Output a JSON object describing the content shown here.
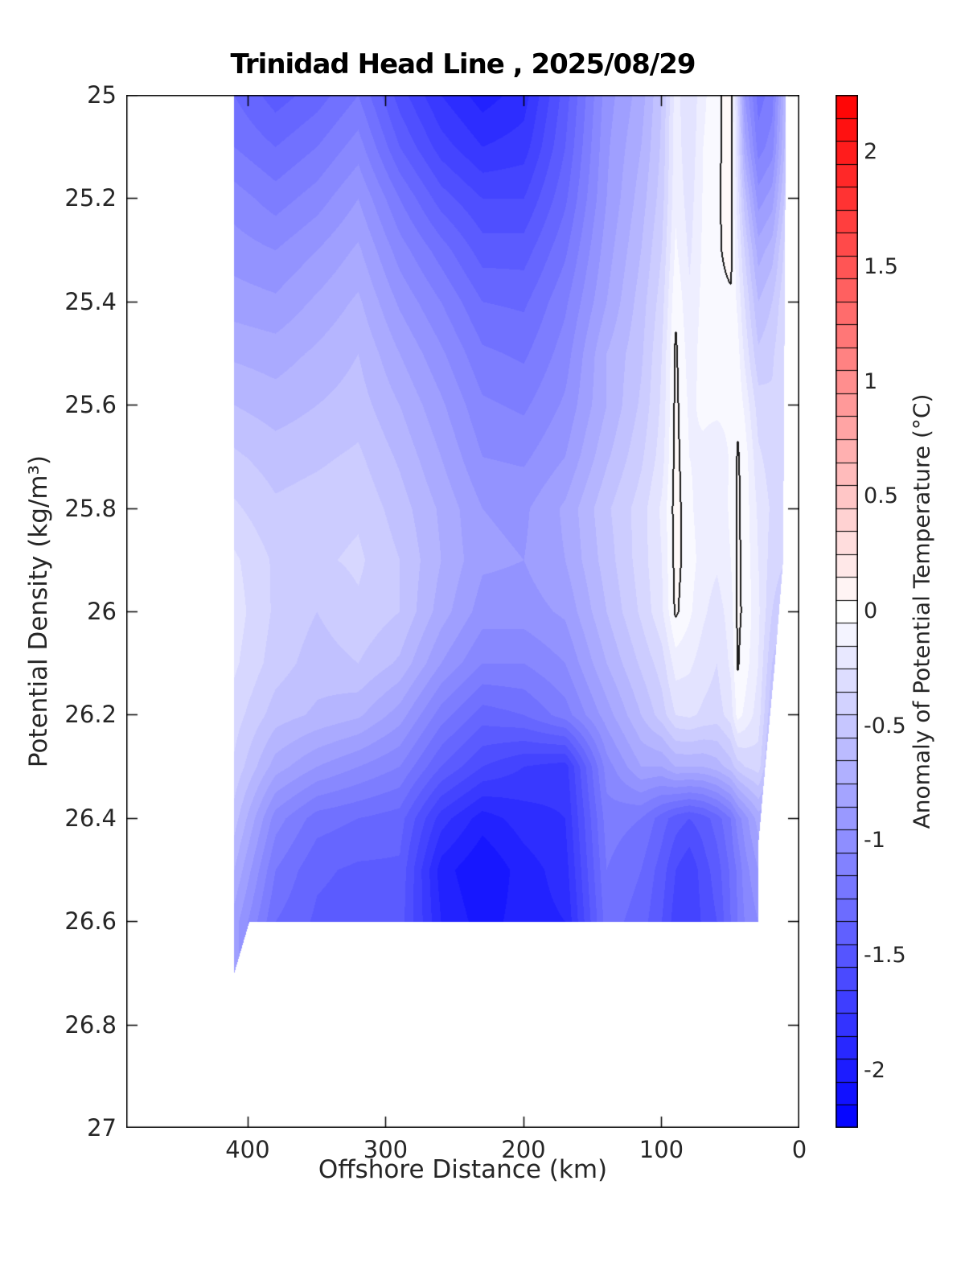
{
  "title": "Trinidad Head Line , 2025/08/29",
  "axes": {
    "xlabel": "Offshore Distance (km)",
    "ylabel": "Potential Density (kg/m³)",
    "x_ticks": [
      {
        "label": "400",
        "km": 400
      },
      {
        "label": "300",
        "km": 300
      },
      {
        "label": "200",
        "km": 200
      },
      {
        "label": "100",
        "km": 100
      },
      {
        "label": "0",
        "km": 0
      }
    ],
    "y_ticks": [
      {
        "label": "25",
        "sigma": 25.0
      },
      {
        "label": "25.2",
        "sigma": 25.2
      },
      {
        "label": "25.4",
        "sigma": 25.4
      },
      {
        "label": "25.6",
        "sigma": 25.6
      },
      {
        "label": "25.8",
        "sigma": 25.8
      },
      {
        "label": "26",
        "sigma": 26.0
      },
      {
        "label": "26.2",
        "sigma": 26.2
      },
      {
        "label": "26.4",
        "sigma": 26.4
      },
      {
        "label": "26.6",
        "sigma": 26.6
      },
      {
        "label": "26.8",
        "sigma": 26.8
      },
      {
        "label": "27",
        "sigma": 27.0
      }
    ]
  },
  "colorbar": {
    "label": "Anomaly of Potential Temperature (°C)",
    "min": -2.25,
    "max": 2.25,
    "segment_step": 0.1,
    "ticks": [
      {
        "label": "2",
        "value": 2
      },
      {
        "label": "1.5",
        "value": 1.5
      },
      {
        "label": "1",
        "value": 1
      },
      {
        "label": "0.5",
        "value": 0.5
      },
      {
        "label": "0",
        "value": 0
      },
      {
        "label": "-0.5",
        "value": -0.5
      },
      {
        "label": "-1",
        "value": -1
      },
      {
        "label": "-1.5",
        "value": -1.5
      },
      {
        "label": "-2",
        "value": -2
      }
    ]
  },
  "chart_data": {
    "type": "heatmap",
    "subtype": "filled-contour-section",
    "title": "Trinidad Head Line , 2025/08/29",
    "xlabel": "Offshore Distance (km)",
    "ylabel": "Potential Density (kg/m³)",
    "zlabel": "Anomaly of Potential Temperature (°C)",
    "x_reversed": true,
    "x_range_km": [
      0,
      488
    ],
    "y_range_sigma": [
      25,
      27
    ],
    "levels_step": 0.1,
    "color_axis": [
      -2.25,
      2.25
    ],
    "colormap": "blue-white-red",
    "deep_blue": "#0000ff",
    "deep_red": "#ff0000",
    "white": "#ffffff",
    "zero_contour_color": "#1a1a1a",
    "stations_km": [
      410,
      380,
      350,
      320,
      290,
      260,
      230,
      200,
      170,
      140,
      115,
      100,
      90,
      80,
      70,
      60,
      50,
      45,
      40,
      30,
      20,
      10
    ],
    "sigma_rows": [
      25.0,
      25.1,
      25.2,
      25.3,
      25.4,
      25.5,
      25.6,
      25.7,
      25.8,
      25.9,
      26.0,
      26.1,
      26.2,
      26.3,
      26.4,
      26.5,
      26.6
    ],
    "anomaly_values": [
      [
        -1.3,
        -1.2,
        -1.05,
        -0.95,
        -0.85,
        -0.72,
        -0.6,
        -0.48,
        -0.38,
        -0.28,
        -0.25,
        -0.28,
        -0.35,
        -0.42,
        -0.55,
        -0.7,
        -0.85
      ],
      [
        -1.45,
        -1.3,
        -1.15,
        -1.0,
        -0.88,
        -0.75,
        -0.65,
        -0.55,
        -0.48,
        -0.42,
        -0.42,
        -0.45,
        -0.55,
        -0.75,
        -1.05,
        -1.2,
        -1.3
      ],
      [
        -1.35,
        -1.2,
        -1.05,
        -0.9,
        -0.78,
        -0.68,
        -0.6,
        -0.52,
        -0.45,
        -0.42,
        -0.5,
        -0.55,
        -0.62,
        -0.9,
        -1.25,
        -1.38,
        -1.42
      ],
      [
        -1.2,
        -1.05,
        -0.9,
        -0.78,
        -0.68,
        -0.6,
        -0.55,
        -0.48,
        -0.42,
        -0.38,
        -0.42,
        -0.5,
        -0.68,
        -1.0,
        -1.3,
        -1.42,
        -1.45
      ],
      [
        -1.55,
        -1.4,
        -1.2,
        -1.05,
        -0.92,
        -0.8,
        -0.7,
        -0.62,
        -0.55,
        -0.5,
        -0.5,
        -0.62,
        -0.85,
        -1.1,
        -1.35,
        -1.42,
        -1.45
      ],
      [
        -1.8,
        -1.65,
        -1.45,
        -1.25,
        -1.1,
        -0.98,
        -0.88,
        -0.8,
        -0.72,
        -0.7,
        -0.75,
        -0.9,
        -1.15,
        -1.4,
        -1.75,
        -1.95,
        -1.9
      ],
      [
        -1.95,
        -1.8,
        -1.6,
        -1.45,
        -1.3,
        -1.18,
        -1.08,
        -1.0,
        -0.9,
        -0.88,
        -0.95,
        -1.1,
        -1.35,
        -1.6,
        -1.95,
        -2.1,
        -2.05
      ],
      [
        -1.85,
        -1.75,
        -1.6,
        -1.45,
        -1.32,
        -1.22,
        -1.12,
        -1.02,
        -0.92,
        -0.9,
        -0.95,
        -1.1,
        -1.3,
        -1.7,
        -1.85,
        -1.95,
        -1.95
      ],
      [
        -1.45,
        -1.4,
        -1.32,
        -1.22,
        -1.12,
        -1.05,
        -0.98,
        -0.9,
        -0.78,
        -0.8,
        -0.88,
        -1.0,
        -1.15,
        -1.75,
        -1.8,
        -1.85,
        -1.9
      ],
      [
        -0.95,
        -0.92,
        -0.9,
        -0.85,
        -0.8,
        -0.7,
        -0.7,
        -0.62,
        -0.52,
        -0.55,
        -0.6,
        -0.7,
        -0.85,
        -1.05,
        -1.15,
        -1.2,
        -1.25
      ],
      [
        -0.75,
        -0.7,
        -0.65,
        -0.6,
        -0.55,
        -0.52,
        -0.48,
        -0.42,
        -0.35,
        -0.35,
        -0.38,
        -0.48,
        -0.6,
        -0.8,
        -1.2,
        -1.3,
        -1.35
      ],
      [
        -0.5,
        -0.48,
        -0.45,
        -0.4,
        -0.35,
        -0.3,
        -0.28,
        -0.25,
        -0.18,
        -0.2,
        -0.22,
        -0.35,
        -0.45,
        -0.8,
        -1.35,
        -1.45,
        -1.5
      ],
      [
        -0.15,
        -0.14,
        -0.12,
        -0.08,
        -0.02,
        0.02,
        0.03,
        0.04,
        0.05,
        0.04,
        0.02,
        -0.15,
        -0.3,
        -0.7,
        -1.45,
        -1.6,
        -1.65
      ],
      [
        -0.3,
        -0.28,
        -0.25,
        -0.22,
        -0.18,
        -0.15,
        -0.12,
        -0.1,
        -0.08,
        -0.06,
        -0.08,
        -0.18,
        -0.28,
        -0.7,
        -1.5,
        -1.68,
        -1.7
      ],
      [
        -0.12,
        -0.1,
        -0.09,
        -0.08,
        -0.07,
        -0.06,
        -0.08,
        -0.12,
        -0.15,
        -0.14,
        -0.18,
        -0.25,
        -0.32,
        -0.7,
        -1.45,
        -1.55,
        -1.58
      ],
      [
        -0.04,
        -0.03,
        -0.02,
        -0.02,
        -0.03,
        -0.04,
        -0.08,
        -0.15,
        -0.18,
        -0.18,
        -0.25,
        -0.3,
        -0.35,
        -0.65,
        -1.35,
        -1.45,
        -1.5
      ],
      [
        0.08,
        0.07,
        0.06,
        0.04,
        -0.02,
        -0.06,
        -0.08,
        -0.09,
        -0.08,
        -0.1,
        -0.15,
        -0.18,
        -0.25,
        -0.55,
        -1.2,
        -1.28,
        -1.3
      ],
      [
        -0.35,
        -0.3,
        -0.25,
        -0.18,
        -0.12,
        -0.06,
        -0.02,
        0.01,
        0.02,
        0.02,
        0.02,
        0.01,
        -0.06,
        -0.45,
        -1.05,
        -1.18,
        -1.2
      ],
      [
        -0.9,
        -0.75,
        -0.55,
        -0.4,
        -0.3,
        -0.22,
        -0.12,
        -0.04,
        -0.04,
        -0.03,
        -0.02,
        -0.05,
        -0.12,
        -0.4,
        -0.95,
        -1.05,
        -1.1
      ],
      [
        -1.25,
        -1.15,
        -0.95,
        -0.75,
        -0.6,
        -0.48,
        -0.35,
        -0.28,
        -0.22,
        -0.2,
        -0.18,
        -0.2,
        -0.25,
        -0.35,
        -0.75,
        -0.9,
        -1.0
      ],
      [
        -1.15,
        -1.05,
        -0.85,
        -0.65,
        -0.5,
        -0.42,
        -0.38,
        -0.35,
        -0.32,
        -0.35,
        -0.4,
        -0.5,
        -0.6,
        -0.7,
        -0.8,
        -0.85,
        -0.9
      ],
      [
        -0.6,
        -0.55,
        -0.45,
        -0.35,
        -0.3,
        -0.28,
        -0.3,
        -0.32,
        -0.35,
        -0.4,
        -0.5,
        -0.65,
        -0.7,
        -0.75,
        -0.8,
        -0.85,
        -0.9
      ]
    ],
    "data_extent": {
      "km_max": 410,
      "sigma_top": 25.0,
      "sigma_bottom_main": 26.6,
      "wedge": {
        "sigma_to": 26.7,
        "km_from": 399
      },
      "right_edge_km_vs_sigma": [
        [
          25.0,
          10
        ],
        [
          25.9,
          12
        ],
        [
          26.1,
          18
        ],
        [
          26.3,
          25
        ],
        [
          26.45,
          30
        ],
        [
          26.75,
          30
        ]
      ]
    },
    "zero_contours": [
      {
        "km_center": 50,
        "sigma_range": [
          25.0,
          25.38
        ],
        "interior_anomaly": 0.05
      },
      {
        "km_center": 90,
        "sigma_range": [
          25.41,
          26.05
        ],
        "interior_anomaly": 0.05
      },
      {
        "km_center": 45,
        "sigma_range": [
          25.7,
          26.15
        ],
        "interior_anomaly": 0.02
      }
    ]
  }
}
